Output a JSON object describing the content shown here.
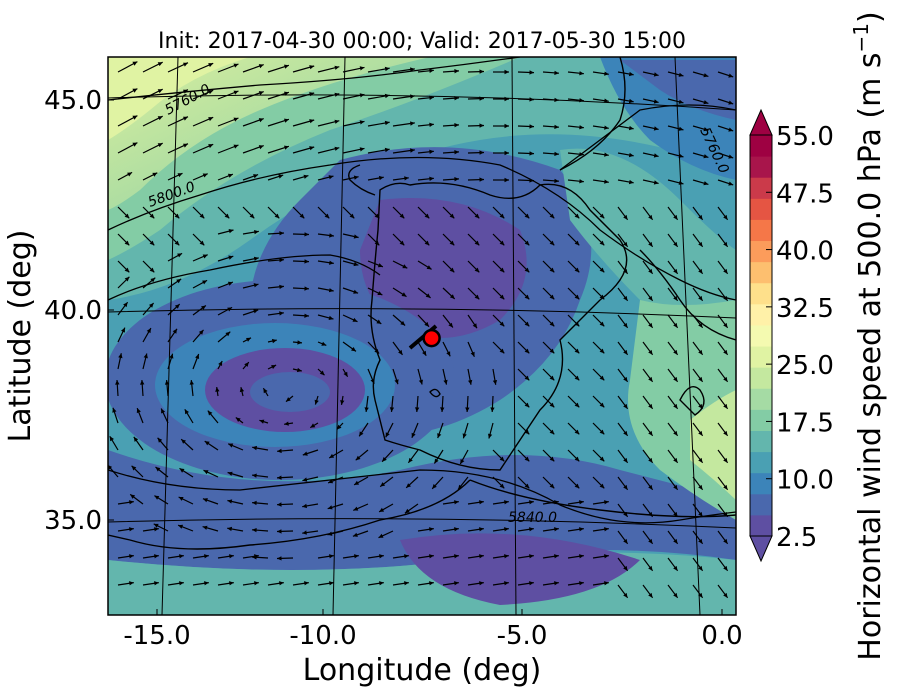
{
  "title": "Init: 2017-04-30 00:00; Valid: 2017-05-30 15:00",
  "xlabel": "Longitude (deg)",
  "ylabel": "Latitude (deg)",
  "xticks": [
    "-15.0",
    "-10.0",
    "-5.0",
    "0.0"
  ],
  "yticks": [
    "45.0",
    "40.0",
    "35.0"
  ],
  "colorbar": {
    "label": "Horizontal wind speed at 500.0 hPa (m s$^{-1}$)",
    "label_main": "Horizontal wind speed at 500.0 hPa (m s",
    "label_exp": "−1",
    "label_end": ")",
    "ticks": [
      "2.5",
      "10.0",
      "17.5",
      "25.0",
      "32.5",
      "40.0",
      "47.5",
      "55.0"
    ],
    "colors": [
      "#5e4fa2",
      "#4a68ad",
      "#3c84b9",
      "#4aa0b3",
      "#63b6ad",
      "#83cca5",
      "#a5dba4",
      "#c4e89f",
      "#e0f3a3",
      "#f4fab0",
      "#fff1a8",
      "#fee08b",
      "#fdbf6f",
      "#fc9c5b",
      "#f57748",
      "#e55543",
      "#cb3a4a",
      "#a8154b",
      "#9e0142"
    ]
  },
  "contour_labels": [
    "5760.0",
    "5800.0",
    "5760.0",
    "5840.0"
  ],
  "marker": {
    "lon": -7.6,
    "lat": 39.3,
    "color": "#ff0000"
  },
  "map": {
    "lon_range": [
      -16.0,
      0.3
    ],
    "lat_range": [
      32.7,
      46.0
    ]
  }
}
